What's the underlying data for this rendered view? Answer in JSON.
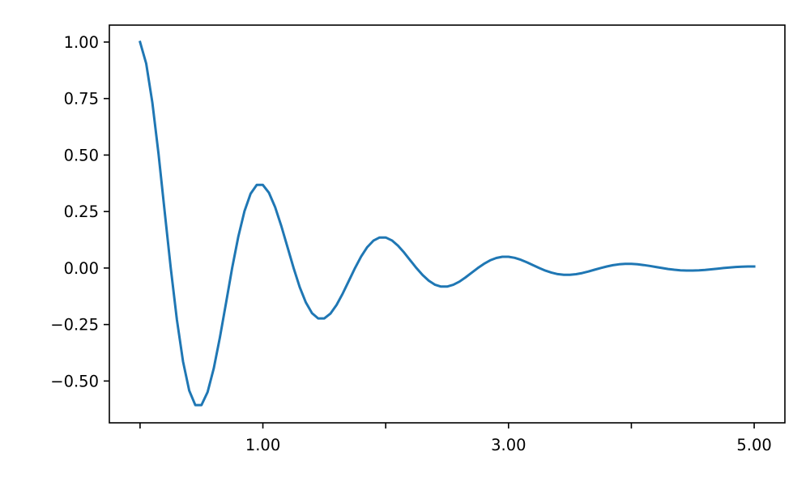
{
  "chart_data": {
    "type": "line",
    "title": "",
    "xlabel": "",
    "ylabel": "",
    "xlim": [
      -0.25,
      5.25
    ],
    "ylim": [
      -0.685,
      1.075
    ],
    "grid": false,
    "line_color": "#1f77b4",
    "x_ticks": [
      0,
      1,
      2,
      3,
      4,
      5
    ],
    "x_tick_labels": [
      "",
      "1.00",
      "",
      "3.00",
      "",
      "5.00"
    ],
    "y_ticks": [
      -0.5,
      -0.25,
      0,
      0.25,
      0.5,
      0.75,
      1.0
    ],
    "y_tick_labels": [
      "−0.50",
      "−0.25",
      "0.00",
      "0.25",
      "0.50",
      "0.75",
      "1.00"
    ],
    "series": [
      {
        "x": [
          0,
          0.05,
          0.1,
          0.15,
          0.2,
          0.25,
          0.3,
          0.35,
          0.4,
          0.45,
          0.5,
          0.55,
          0.6,
          0.65,
          0.7,
          0.75,
          0.8,
          0.85,
          0.9,
          0.95,
          1,
          1.05,
          1.1,
          1.15,
          1.2,
          1.25,
          1.3,
          1.35,
          1.4,
          1.45,
          1.5,
          1.55,
          1.6,
          1.65,
          1.7,
          1.75,
          1.8,
          1.85,
          1.9,
          1.95,
          2,
          2.05,
          2.1,
          2.15,
          2.2,
          2.25,
          2.3,
          2.35,
          2.4,
          2.45,
          2.5,
          2.55,
          2.6,
          2.65,
          2.7,
          2.75,
          2.8,
          2.85,
          2.9,
          2.95,
          3,
          3.05,
          3.1,
          3.15,
          3.2,
          3.25,
          3.3,
          3.35,
          3.4,
          3.45,
          3.5,
          3.55,
          3.6,
          3.65,
          3.7,
          3.75,
          3.8,
          3.85,
          3.9,
          3.95,
          4,
          4.05,
          4.1,
          4.15,
          4.2,
          4.25,
          4.3,
          4.35,
          4.4,
          4.45,
          4.5,
          4.55,
          4.6,
          4.65,
          4.7,
          4.75,
          4.8,
          4.85,
          4.9,
          4.95,
          5
        ],
        "y": [
          1,
          0.9047,
          0.732,
          0.5059,
          0.253,
          0,
          -0.2289,
          -0.4142,
          -0.5423,
          -0.6064,
          -0.6065,
          -0.5487,
          -0.444,
          -0.3068,
          -0.1535,
          0,
          0.1388,
          0.2512,
          0.3289,
          0.3678,
          0.3679,
          0.3328,
          0.2693,
          0.1861,
          0.0931,
          0,
          -0.0842,
          -0.1524,
          -0.1995,
          -0.2231,
          -0.2231,
          -0.2019,
          -0.1633,
          -0.1129,
          -0.0565,
          0,
          0.0511,
          0.0924,
          0.121,
          0.1353,
          0.1353,
          0.1224,
          0.099,
          0.0684,
          0.0342,
          0,
          -0.031,
          -0.056,
          -0.0734,
          -0.082,
          -0.0821,
          -0.0742,
          -0.0601,
          -0.0415,
          -0.0208,
          0,
          0.0188,
          0.034,
          0.0445,
          0.0498,
          0.0498,
          0.0451,
          0.0365,
          0.0252,
          0.0126,
          0,
          -0.0114,
          -0.0206,
          -0.027,
          -0.0302,
          -0.0302,
          -0.0273,
          -0.0221,
          -0.0153,
          -0.0076,
          0,
          0.0069,
          0.0125,
          0.0164,
          0.0183,
          0.0183,
          0.0166,
          0.0134,
          0.0093,
          0.0046,
          0,
          -0.0042,
          -0.0076,
          -0.0099,
          -0.0111,
          -0.0111,
          -0.01,
          -0.0081,
          -0.0056,
          -0.0028,
          0,
          0.0025,
          0.0046,
          0.006,
          0.0067,
          0.0067
        ]
      }
    ]
  }
}
